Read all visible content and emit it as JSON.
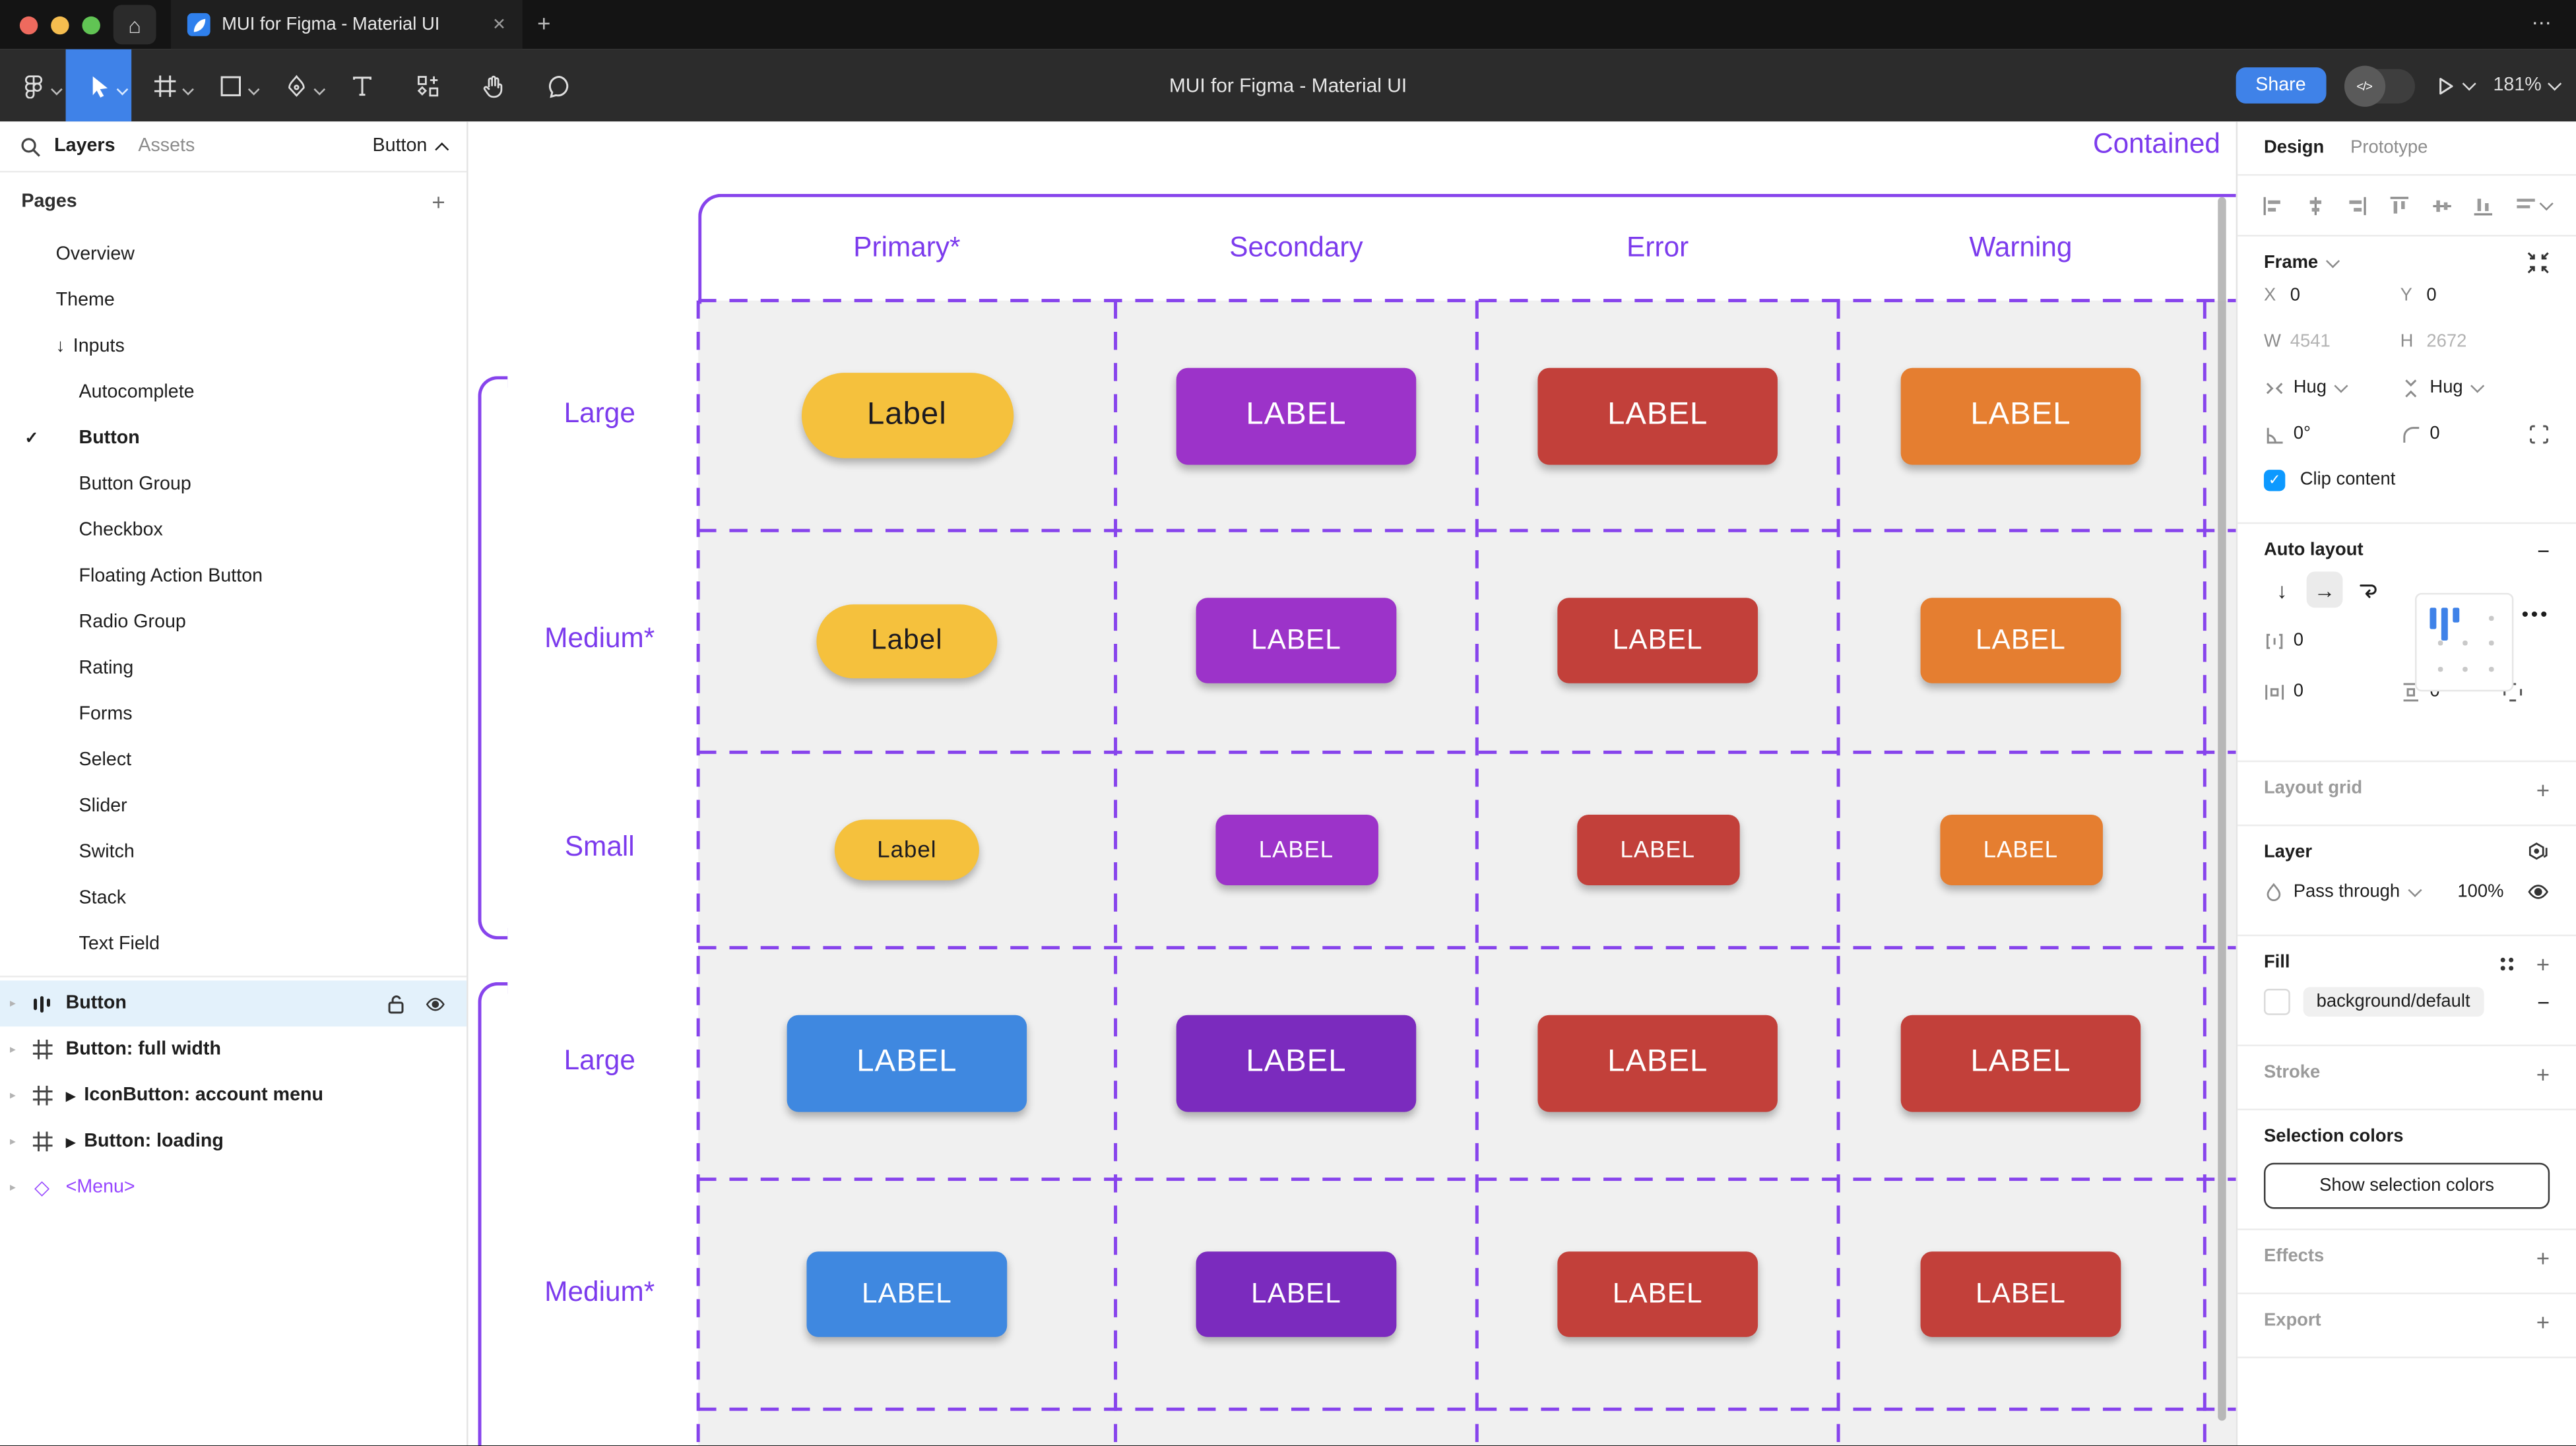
{
  "colors": {
    "accent_blue": "#3F82E8",
    "figma_blue": "#2F80ED",
    "check_blue": "#0D99FF",
    "selection_purple": "#8744EC",
    "canvas_text_purple": "#7C3BED",
    "selected_row_bg": "#E3F1FB",
    "traffic_red": "#EE6A5E",
    "traffic_yellow": "#F5BD4F",
    "traffic_green": "#61C454"
  },
  "icons": {
    "home": "⌂",
    "close": "✕",
    "plus": "+",
    "minus": "−",
    "more_h": "•••",
    "more_dots": "⋯",
    "check": "✓",
    "arrow_down": "↓",
    "arrow_right": "→",
    "caret_collapsed": "▸",
    "component_play": "▶",
    "instance_diamond": "◇",
    "dev_mode": "</>"
  },
  "window": {
    "tab_title": "MUI for Figma - Material UI",
    "doc_title": "MUI for Figma - Material UI"
  },
  "toolbar": {
    "share_label": "Share",
    "zoom_level": "181%"
  },
  "sidebar": {
    "tabs": {
      "layers": "Layers",
      "assets": "Assets"
    },
    "context_selector": "Button",
    "pages_header": "Pages",
    "pages": [
      {
        "label": "Overview"
      },
      {
        "label": "Theme"
      },
      {
        "label": "Inputs",
        "prefix": "arrow_down"
      },
      {
        "label": "Autocomplete",
        "indent": true
      },
      {
        "label": "Button",
        "indent": true,
        "checked": true
      },
      {
        "label": "Button Group",
        "indent": true
      },
      {
        "label": "Checkbox",
        "indent": true
      },
      {
        "label": "Floating Action Button",
        "indent": true
      },
      {
        "label": "Radio Group",
        "indent": true
      },
      {
        "label": "Rating",
        "indent": true
      },
      {
        "label": "Forms",
        "indent": true
      },
      {
        "label": "Select",
        "indent": true
      },
      {
        "label": "Slider",
        "indent": true
      },
      {
        "label": "Switch",
        "indent": true
      },
      {
        "label": "Stack",
        "indent": true
      },
      {
        "label": "Text Field",
        "indent": true
      }
    ],
    "layers": [
      {
        "label": "Button",
        "icon": "auto-layout",
        "selected": true,
        "bold": true
      },
      {
        "label": "Button: full width",
        "icon": "frame",
        "bold": true
      },
      {
        "label": "IconButton: account menu",
        "icon": "frame",
        "component_arrow": true,
        "bold": true
      },
      {
        "label": "Button: loading",
        "icon": "frame",
        "component_arrow": true,
        "bold": true
      },
      {
        "label": "<Menu>",
        "icon": "instance",
        "purple": true
      }
    ]
  },
  "canvas": {
    "frame_label": "Contained",
    "column_headers": [
      "Primary*",
      "Secondary",
      "Error",
      "Warning"
    ],
    "rows": [
      {
        "label": "Large",
        "size": "large",
        "buttons": [
          {
            "text": "Label",
            "bg": "#F5C13D",
            "fg": "#1D1B20",
            "pill": true
          },
          {
            "text": "LABEL",
            "bg": "#9C33C9",
            "fg": "#FFFFFF"
          },
          {
            "text": "LABEL",
            "bg": "#C2403A",
            "fg": "#FFFFFF"
          },
          {
            "text": "LABEL",
            "bg": "#E57E30",
            "fg": "#FFFFFF"
          }
        ]
      },
      {
        "label": "Medium*",
        "size": "medium",
        "buttons": [
          {
            "text": "Label",
            "bg": "#F5C13D",
            "fg": "#1D1B20",
            "pill": true
          },
          {
            "text": "LABEL",
            "bg": "#9C33C9",
            "fg": "#FFFFFF"
          },
          {
            "text": "LABEL",
            "bg": "#C2403A",
            "fg": "#FFFFFF"
          },
          {
            "text": "LABEL",
            "bg": "#E57E30",
            "fg": "#FFFFFF"
          }
        ]
      },
      {
        "label": "Small",
        "size": "small",
        "buttons": [
          {
            "text": "Label",
            "bg": "#F5C13D",
            "fg": "#1D1B20",
            "pill": true
          },
          {
            "text": "LABEL",
            "bg": "#9C33C9",
            "fg": "#FFFFFF"
          },
          {
            "text": "LABEL",
            "bg": "#C2403A",
            "fg": "#FFFFFF"
          },
          {
            "text": "LABEL",
            "bg": "#E57E30",
            "fg": "#FFFFFF"
          }
        ]
      },
      {
        "label": "Large",
        "size": "large",
        "buttons": [
          {
            "text": "LABEL",
            "bg": "#3F88E0",
            "fg": "#FFFFFF"
          },
          {
            "text": "LABEL",
            "bg": "#7B2BBE",
            "fg": "#FFFFFF"
          },
          {
            "text": "LABEL",
            "bg": "#C2403A",
            "fg": "#FFFFFF"
          },
          {
            "text": "LABEL",
            "bg": "#C2403A",
            "fg": "#FFFFFF"
          }
        ]
      },
      {
        "label": "Medium*",
        "size": "medium",
        "buttons": [
          {
            "text": "LABEL",
            "bg": "#3F88E0",
            "fg": "#FFFFFF"
          },
          {
            "text": "LABEL",
            "bg": "#7B2BBE",
            "fg": "#FFFFFF"
          },
          {
            "text": "LABEL",
            "bg": "#C2403A",
            "fg": "#FFFFFF"
          },
          {
            "text": "LABEL",
            "bg": "#C2403A",
            "fg": "#FFFFFF"
          }
        ]
      }
    ]
  },
  "inspector": {
    "tabs": {
      "design": "Design",
      "prototype": "Prototype"
    },
    "frame": {
      "title": "Frame",
      "x_label": "X",
      "x": "0",
      "y_label": "Y",
      "y": "0",
      "w_label": "W",
      "w": "4541",
      "h_label": "H",
      "h": "2672",
      "h_sizing": "Hug",
      "v_sizing": "Hug",
      "rotation": "0°",
      "radius": "0",
      "clip_label": "Clip content"
    },
    "auto_layout": {
      "title": "Auto layout",
      "gap": "0",
      "padding_h": "0",
      "padding_v": "0"
    },
    "layout_grid": {
      "title": "Layout grid"
    },
    "layer": {
      "title": "Layer",
      "blend_mode": "Pass through",
      "opacity": "100%"
    },
    "fill": {
      "title": "Fill",
      "token": "background/default"
    },
    "stroke": {
      "title": "Stroke"
    },
    "selection_colors": {
      "title": "Selection colors",
      "button_label": "Show selection colors"
    },
    "effects": {
      "title": "Effects"
    },
    "export": {
      "title": "Export"
    }
  }
}
